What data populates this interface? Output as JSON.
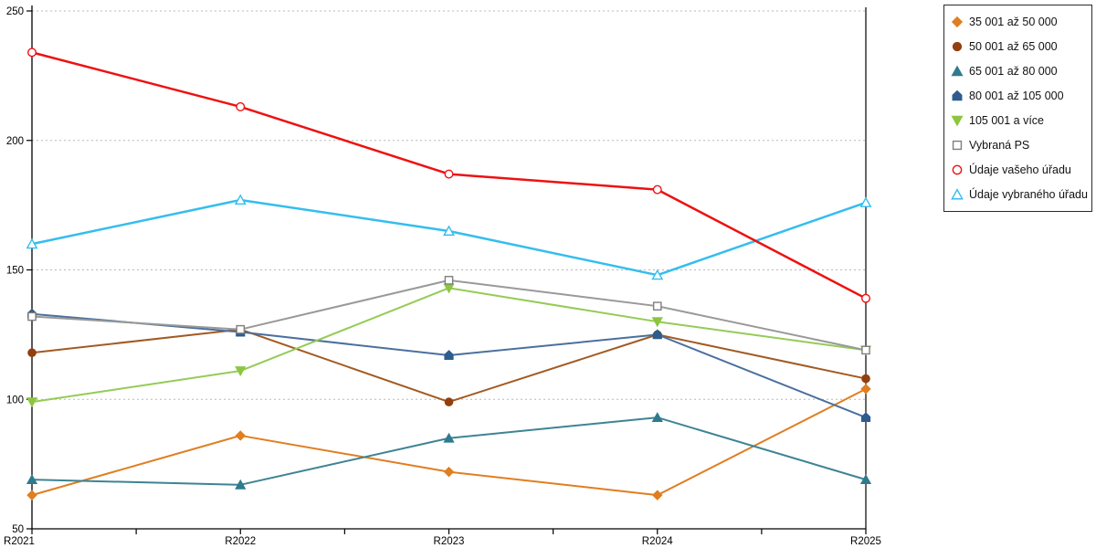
{
  "axes": {
    "x_labels": [
      "R2021",
      "R2022",
      "R2023",
      "R2024",
      "R2025"
    ],
    "y_labels": [
      "50",
      "100",
      "150",
      "200",
      "250"
    ]
  },
  "chart_data": {
    "type": "line",
    "categories": [
      "R2021",
      "R2022",
      "R2023",
      "R2024",
      "R2025"
    ],
    "title": "",
    "xlabel": "",
    "ylabel": "",
    "ylim": [
      50,
      250
    ],
    "y_ticks": [
      50,
      100,
      150,
      200,
      250
    ],
    "grid": "dotted-horizontal",
    "grid_color": "#b8b8b8",
    "axis_color": "#000000",
    "legend_position": "top-right-outside",
    "draw_order": [
      0,
      1,
      2,
      3,
      4,
      5,
      7,
      6
    ],
    "series": [
      {
        "name": "35 001 až 50 000",
        "marker": "diamond",
        "filled": true,
        "color": "#e07e20",
        "line_color": "#e07e20",
        "line_width": 2,
        "values": [
          63,
          86,
          72,
          63,
          104
        ]
      },
      {
        "name": "50 001 až 65 000",
        "marker": "circle",
        "filled": true,
        "color": "#943f0e",
        "line_color": "#a25a22",
        "line_width": 2,
        "values": [
          118,
          127,
          99,
          125,
          108
        ]
      },
      {
        "name": "65 001 až 80 000",
        "marker": "triangle-up",
        "filled": true,
        "color": "#2f7a8e",
        "line_color": "#3d8493",
        "line_width": 2,
        "values": [
          69,
          67,
          85,
          93,
          69
        ]
      },
      {
        "name": "80 001 až 105 000",
        "marker": "pentagon",
        "filled": true,
        "color": "#2e5c8e",
        "line_color": "#4a709d",
        "line_width": 2,
        "values": [
          133,
          126,
          117,
          125,
          93
        ]
      },
      {
        "name": "105 001 a více",
        "marker": "triangle-down",
        "filled": true,
        "color": "#8cc63f",
        "line_color": "#94cb55",
        "line_width": 2,
        "values": [
          99,
          111,
          143,
          130,
          119
        ]
      },
      {
        "name": "Vybraná PS",
        "marker": "square",
        "filled": false,
        "color": "#7f7f7f",
        "line_color": "#999999",
        "line_width": 2,
        "values": [
          132,
          127,
          146,
          136,
          119
        ]
      },
      {
        "name": "Údaje vašeho úřadu",
        "marker": "circle",
        "filled": false,
        "color": "#ee1111",
        "line_color": "#ee1111",
        "line_width": 2.5,
        "values": [
          234,
          213,
          187,
          181,
          139
        ]
      },
      {
        "name": "Údaje vybraného úřadu",
        "marker": "triangle-up",
        "filled": false,
        "color": "#35bdee",
        "line_color": "#35bdee",
        "line_width": 2.5,
        "values": [
          160,
          177,
          165,
          148,
          176
        ]
      }
    ]
  }
}
